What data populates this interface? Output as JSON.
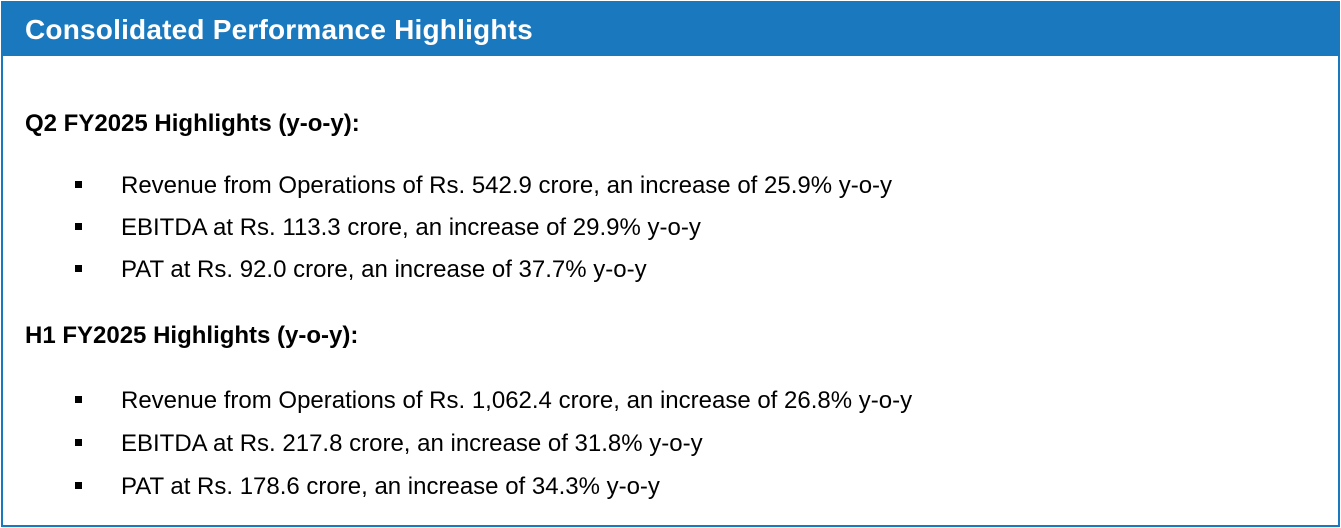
{
  "title": "Consolidated Performance Highlights",
  "sections": [
    {
      "heading": "Q2 FY2025 Highlights (y-o-y):",
      "items": [
        "Revenue from Operations of Rs. 542.9 crore, an increase of 25.9% y-o-y",
        "EBITDA at Rs. 113.3 crore, an increase of 29.9% y-o-y",
        "PAT at Rs. 92.0 crore, an increase of 37.7% y-o-y"
      ]
    },
    {
      "heading": "H1 FY2025 Highlights (y-o-y):",
      "items": [
        "Revenue from Operations of Rs. 1,062.4 crore, an increase of 26.8% y-o-y",
        "EBITDA at Rs. 217.8 crore, an increase of 31.8% y-o-y",
        "PAT at Rs. 178.6 crore, an increase of 34.3% y-o-y"
      ]
    }
  ],
  "colors": {
    "accent": "#1a78be"
  }
}
